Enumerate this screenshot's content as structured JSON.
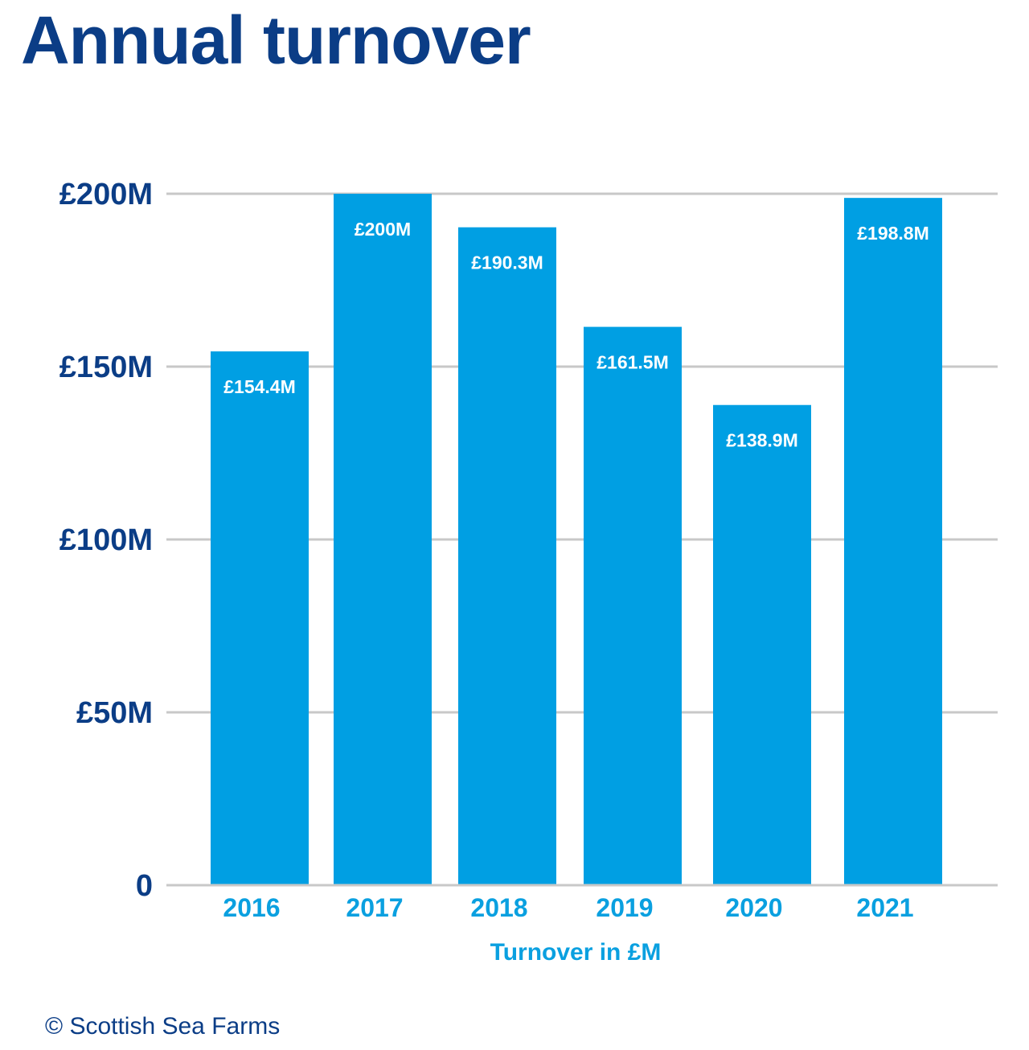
{
  "title": "Annual turnover",
  "copyright": "© Scottish Sea Farms",
  "colors": {
    "bar": "#009fe3",
    "title": "#0b3d86",
    "ytick": "#0b3d86",
    "xtick": "#0aa0e0",
    "grid": "#c8c8c8",
    "datalabel": "#ffffff"
  },
  "chart_data": {
    "type": "bar",
    "title": "Annual turnover",
    "xlabel": "Turnover in £M",
    "ylabel": "",
    "categories": [
      "2016",
      "2017",
      "2018",
      "2019",
      "2020",
      "2021"
    ],
    "values": [
      154.4,
      200,
      190.3,
      161.5,
      138.9,
      198.8
    ],
    "data_labels": [
      "£154.4M",
      "£200M",
      "£190.3M",
      "£161.5M",
      "£138.9M",
      "£198.8M"
    ],
    "ylim": [
      0,
      200
    ],
    "yticks": [
      0,
      50,
      100,
      150,
      200
    ],
    "ytick_labels": [
      "0",
      "£50M",
      "£100M",
      "£150M",
      "£200M"
    ],
    "grid": true,
    "legend": "none"
  }
}
